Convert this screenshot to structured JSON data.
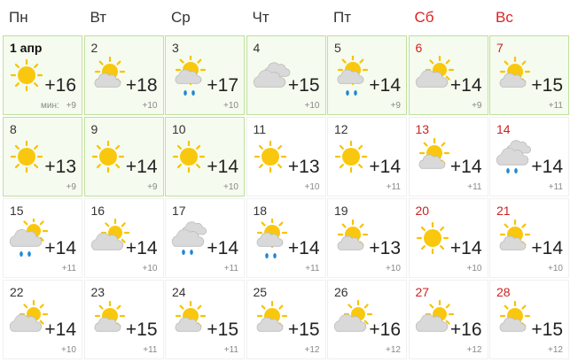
{
  "header": {
    "weekdays": [
      "Пн",
      "Вт",
      "Ср",
      "Чт",
      "Пт",
      "Сб",
      "Вс"
    ]
  },
  "weeks": [
    [
      {
        "day": "1 апр",
        "max": "+16",
        "min_label": "мин:",
        "min": "+9"
      },
      {
        "day": "2",
        "max": "+18",
        "min": "+10"
      },
      {
        "day": "3",
        "max": "+17",
        "min": "+10"
      },
      {
        "day": "4",
        "max": "+15",
        "min": "+10"
      },
      {
        "day": "5",
        "max": "+14",
        "min": "+9"
      },
      {
        "day": "6",
        "max": "+14",
        "min": "+9"
      },
      {
        "day": "7",
        "max": "+15",
        "min": "+11"
      }
    ],
    [
      {
        "day": "8",
        "max": "+13",
        "min": "+9"
      },
      {
        "day": "9",
        "max": "+14",
        "min": "+9"
      },
      {
        "day": "10",
        "max": "+14",
        "min": "+10"
      },
      {
        "day": "11",
        "max": "+13",
        "min": "+10"
      },
      {
        "day": "12",
        "max": "+14",
        "min": "+11"
      },
      {
        "day": "13",
        "max": "+14",
        "min": "+11"
      },
      {
        "day": "14",
        "max": "+14",
        "min": "+11"
      }
    ],
    [
      {
        "day": "15",
        "max": "+14",
        "min": "+11"
      },
      {
        "day": "16",
        "max": "+14",
        "min": "+10"
      },
      {
        "day": "17",
        "max": "+14",
        "min": "+11"
      },
      {
        "day": "18",
        "max": "+14",
        "min": "+11"
      },
      {
        "day": "19",
        "max": "+13",
        "min": "+10"
      },
      {
        "day": "20",
        "max": "+14",
        "min": "+10"
      },
      {
        "day": "21",
        "max": "+14",
        "min": "+10"
      }
    ],
    [
      {
        "day": "22",
        "max": "+14",
        "min": "+10"
      },
      {
        "day": "23",
        "max": "+15",
        "min": "+11"
      },
      {
        "day": "24",
        "max": "+15",
        "min": "+11"
      },
      {
        "day": "25",
        "max": "+15",
        "min": "+12"
      },
      {
        "day": "26",
        "max": "+16",
        "min": "+12"
      },
      {
        "day": "27",
        "max": "+16",
        "min": "+12"
      },
      {
        "day": "28",
        "max": "+15",
        "min": "+12"
      }
    ]
  ]
}
